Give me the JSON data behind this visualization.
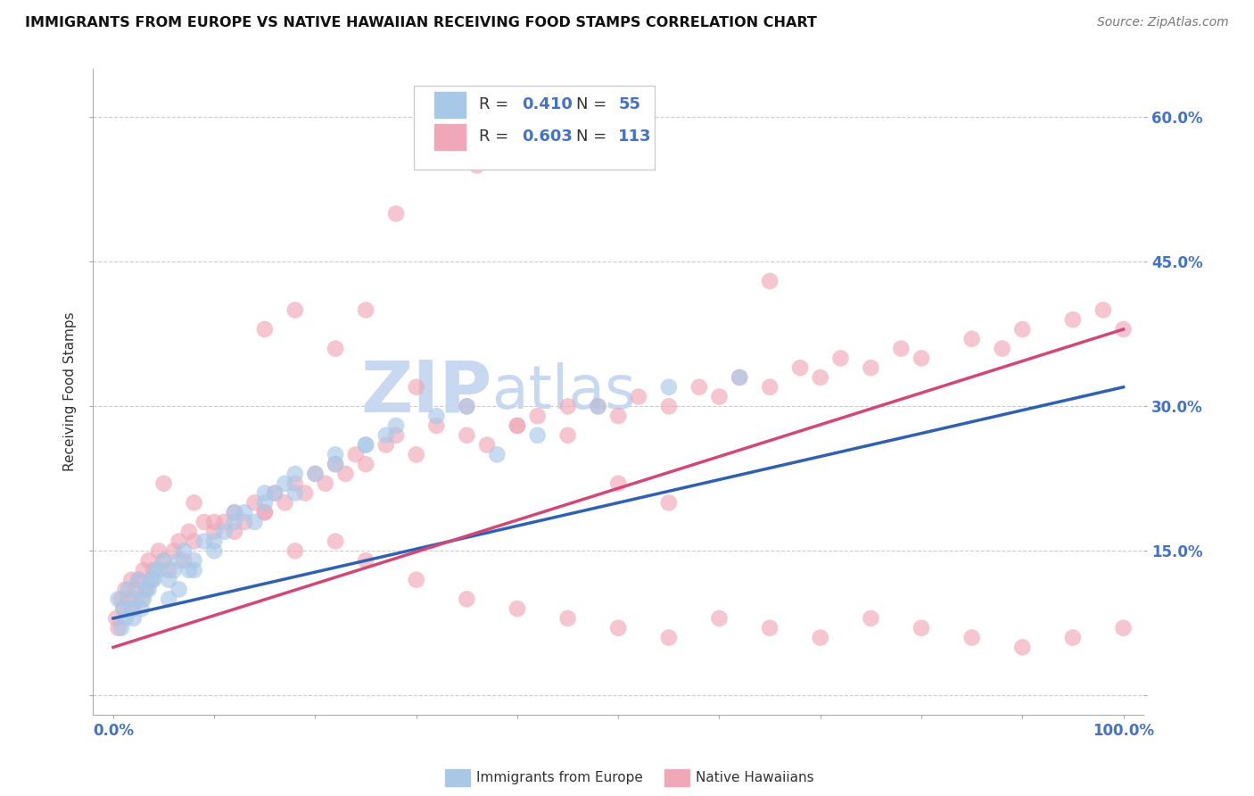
{
  "title": "IMMIGRANTS FROM EUROPE VS NATIVE HAWAIIAN RECEIVING FOOD STAMPS CORRELATION CHART",
  "source": "Source: ZipAtlas.com",
  "ylabel": "Receiving Food Stamps",
  "xlim": [
    -2,
    102
  ],
  "ylim": [
    -2,
    65
  ],
  "xticks": [
    0,
    10,
    20,
    30,
    40,
    50,
    60,
    70,
    80,
    90,
    100
  ],
  "yticks": [
    0,
    15,
    30,
    45,
    60
  ],
  "xticklabels": [
    "0.0%",
    "",
    "",
    "",
    "",
    "",
    "",
    "",
    "",
    "",
    "100.0%"
  ],
  "yticklabels": [
    "",
    "15.0%",
    "30.0%",
    "45.0%",
    "60.0%"
  ],
  "blue_color": "#A8C8E8",
  "pink_color": "#F0A8B8",
  "blue_line_color": "#3060B0",
  "pink_line_color": "#D04878",
  "legend_R1": "R = 0.410",
  "legend_N1": "N = 55",
  "legend_R2": "R = 0.603",
  "legend_N2": "N = 113",
  "watermark_ZIP": "ZIP",
  "watermark_atlas": "atlas",
  "watermark_color": "#C8D8F0",
  "label_europe": "Immigrants from Europe",
  "label_hawaiian": "Native Hawaiians",
  "blue_line_start_y": 8.0,
  "blue_line_end_y": 32.0,
  "pink_line_start_y": 5.0,
  "pink_line_end_y": 38.0
}
